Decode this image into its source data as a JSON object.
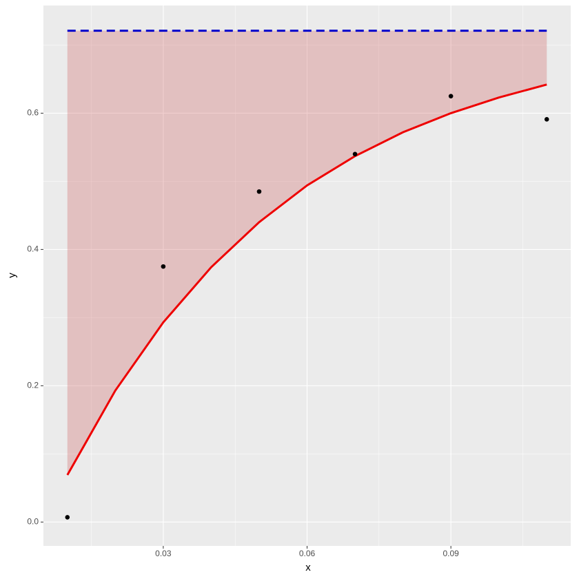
{
  "chart_data": {
    "type": "scatter",
    "xlabel": "x",
    "ylabel": "y",
    "xlim": [
      0.005,
      0.115
    ],
    "ylim": [
      -0.035,
      0.758
    ],
    "xticks": [
      0.03,
      0.06,
      0.09
    ],
    "yticks": [
      {
        "value": 0,
        "label": "0.0"
      },
      0.2,
      0.4,
      0.6
    ],
    "grid": true,
    "x": [
      0.01,
      0.03,
      0.05,
      0.07,
      0.09,
      0.11
    ],
    "values": [
      0.007,
      0.375,
      0.485,
      0.54,
      0.625,
      0.591
    ],
    "color": "#000000",
    "curve": {
      "x": [
        0.01,
        0.02,
        0.03,
        0.04,
        0.05,
        0.06,
        0.07,
        0.08,
        0.09,
        0.1,
        0.11
      ],
      "values": [
        0.069,
        0.193,
        0.293,
        0.374,
        0.44,
        0.494,
        0.537,
        0.572,
        0.6,
        0.623,
        0.642
      ],
      "color": "#ee0000"
    },
    "ribbon_color": "#cd5c5c",
    "hline": {
      "value": 0.721,
      "color": "#0000cc"
    }
  }
}
